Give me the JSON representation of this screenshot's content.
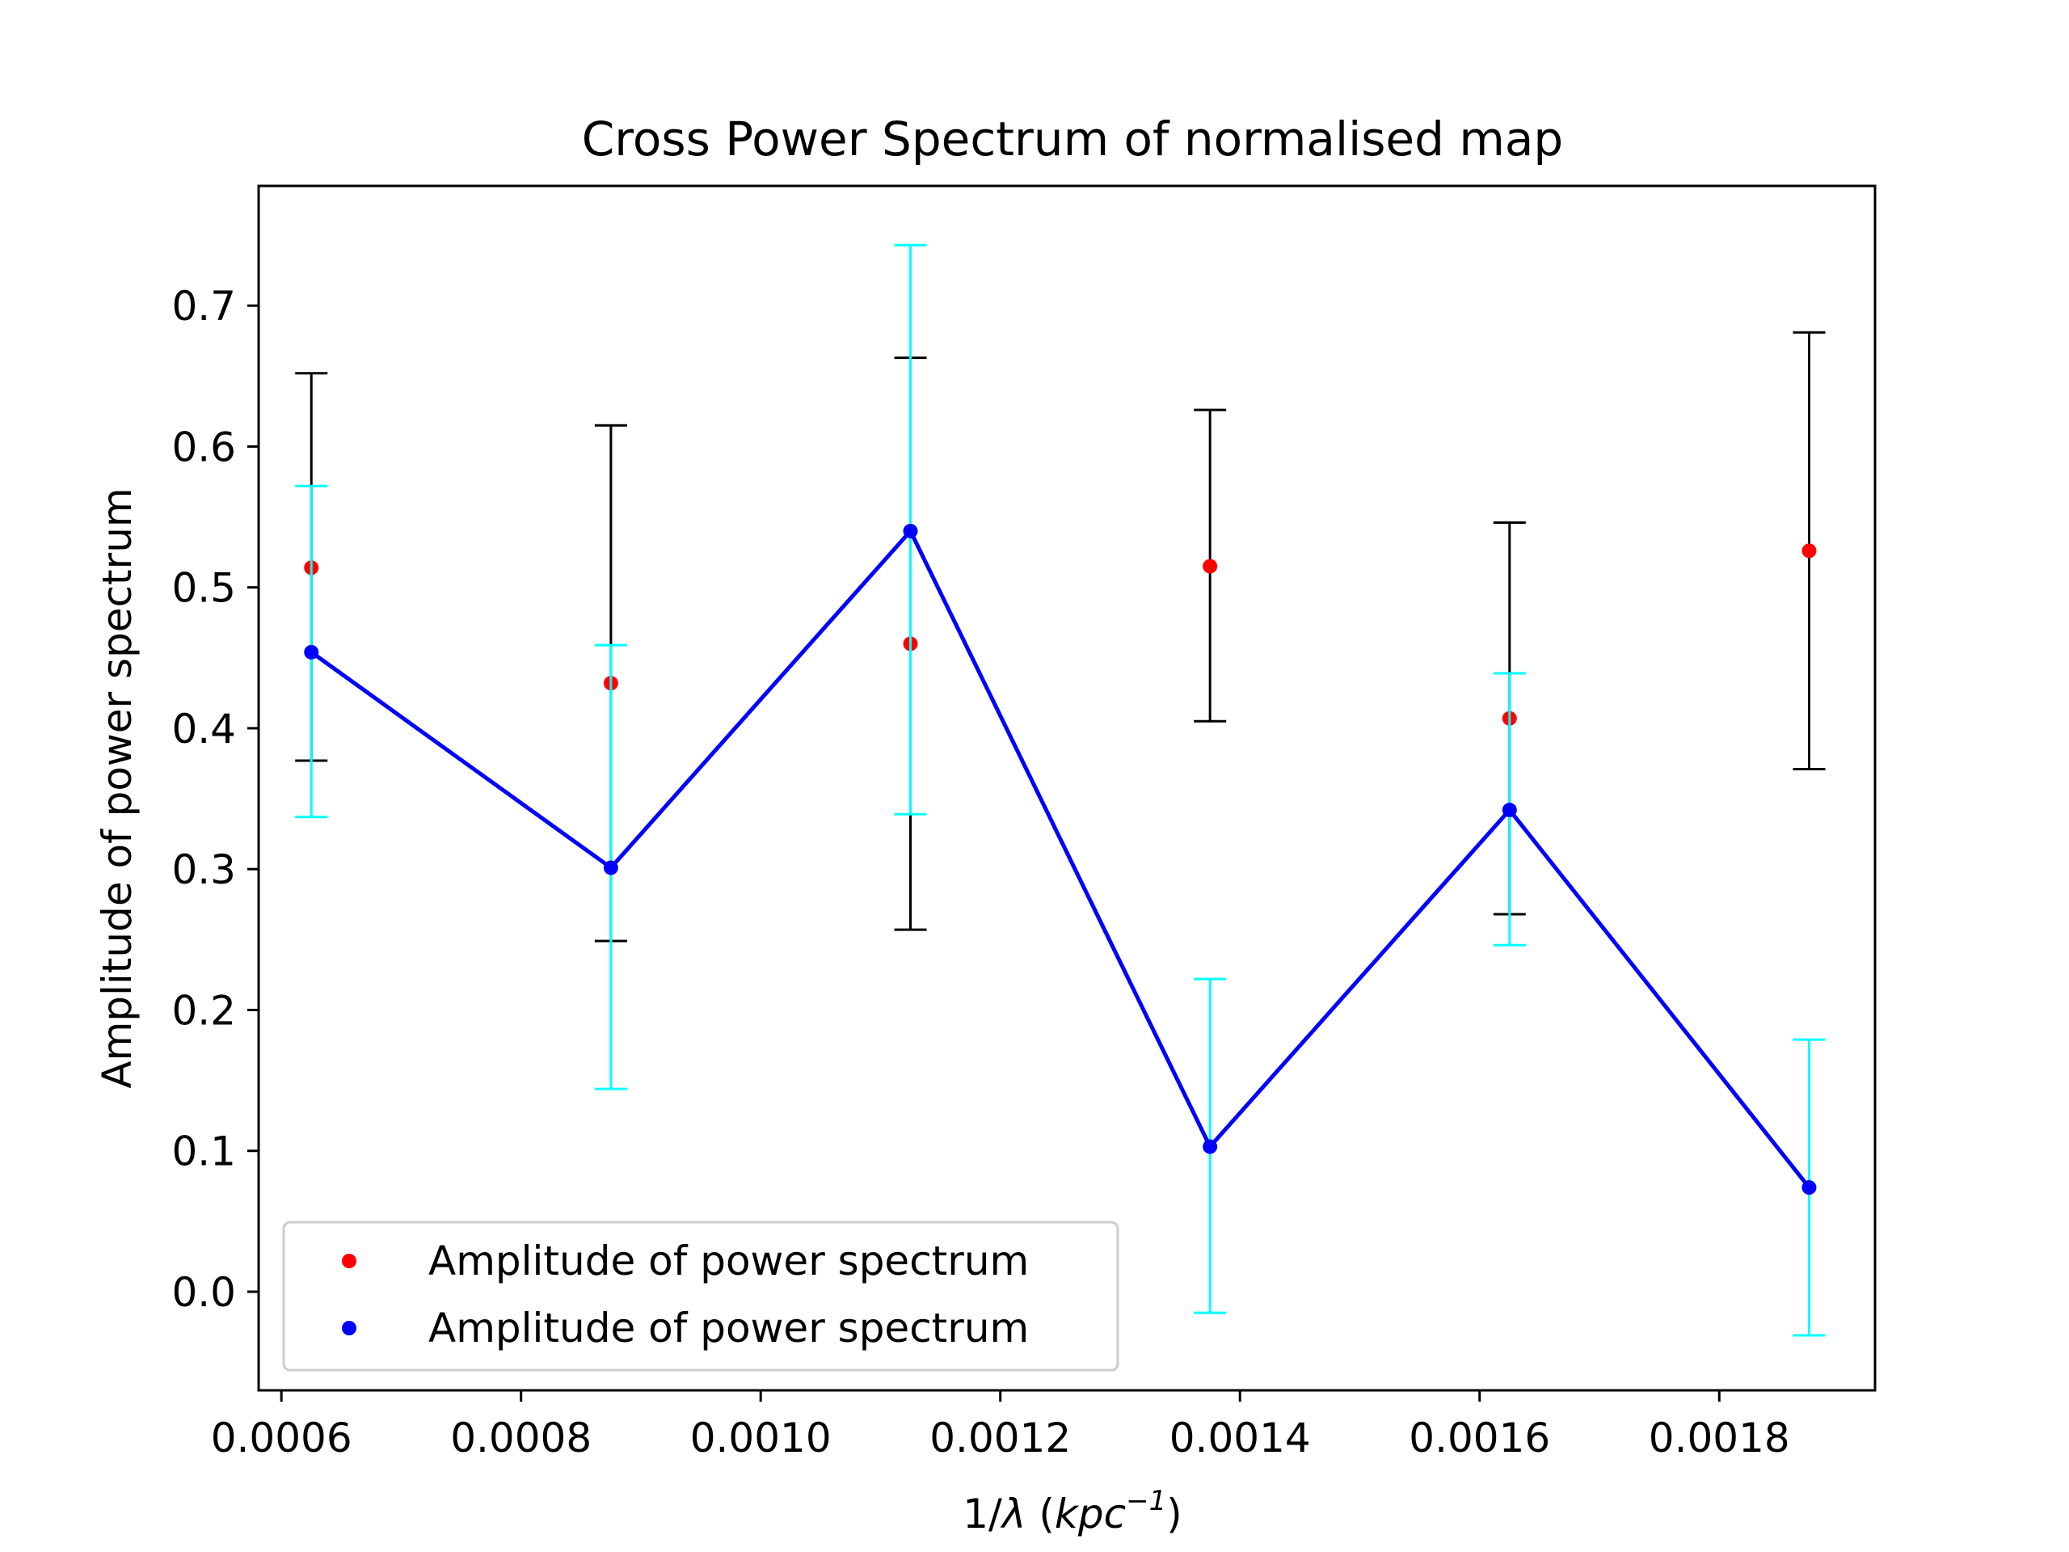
{
  "chart_data": {
    "type": "scatter",
    "title": "Cross Power Spectrum of normalised map",
    "xlabel_prefix": "1/",
    "xlabel_lambda": "λ",
    "xlabel_unit_open": " (",
    "xlabel_unit": "kpc",
    "xlabel_exponent": "−1",
    "xlabel_unit_close": ")",
    "ylabel": "Amplitude of power spectrum",
    "xlim": [
      0.000581,
      0.00193
    ],
    "ylim": [
      -0.07,
      0.785
    ],
    "xticks": [
      0.0006,
      0.0008,
      0.001,
      0.0012,
      0.0014,
      0.0016,
      0.0018
    ],
    "xtick_labels": [
      "0.0006",
      "0.0008",
      "0.0010",
      "0.0012",
      "0.0014",
      "0.0016",
      "0.0018"
    ],
    "yticks": [
      0.0,
      0.1,
      0.2,
      0.3,
      0.4,
      0.5,
      0.6,
      0.7
    ],
    "ytick_labels": [
      "0.0",
      "0.1",
      "0.2",
      "0.3",
      "0.4",
      "0.5",
      "0.6",
      "0.7"
    ],
    "legend_position": "lower-left",
    "grid": false,
    "x": [
      0.000625,
      0.000875,
      0.001125,
      0.001375,
      0.001625,
      0.001875
    ],
    "series": [
      {
        "name": "Amplitude of power spectrum",
        "color": "#ff0000",
        "errorbar_color": "#000000",
        "marker": "point",
        "line": false,
        "values": [
          0.514,
          0.432,
          0.46,
          0.515,
          0.407,
          0.526
        ],
        "lower": [
          0.377,
          0.249,
          0.257,
          0.405,
          0.268,
          0.371
        ],
        "upper": [
          0.652,
          0.615,
          0.663,
          0.626,
          0.546,
          0.681
        ]
      },
      {
        "name": "Amplitude of power spectrum",
        "color": "#0000ff",
        "errorbar_color": "#00ffff",
        "marker": "point",
        "line": true,
        "values": [
          0.454,
          0.301,
          0.54,
          0.103,
          0.342,
          0.074
        ],
        "lower": [
          0.337,
          0.144,
          0.339,
          -0.015,
          0.246,
          -0.031
        ],
        "upper": [
          0.572,
          0.459,
          0.743,
          0.222,
          0.439,
          0.179
        ]
      }
    ]
  }
}
